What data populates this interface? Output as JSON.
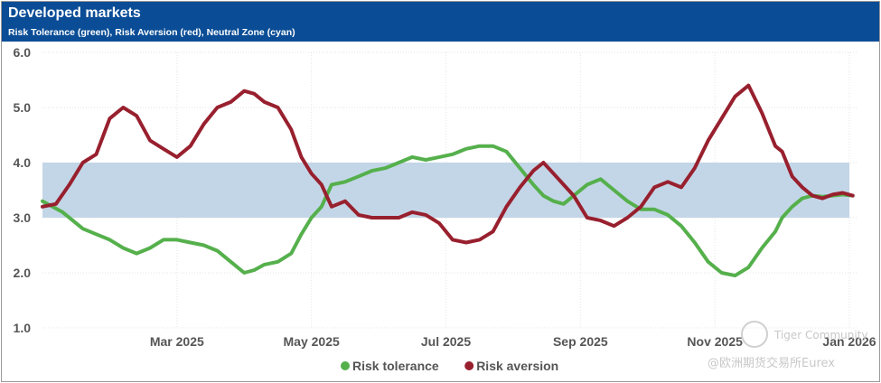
{
  "header": {
    "title": "Developed markets",
    "subtitle": "Risk Tolerance (green), Risk Aversion (red), Neutral Zone (cyan)"
  },
  "watermark": {
    "line1": "Tiger Community",
    "line2": "@欧洲期货交易所Eurex"
  },
  "chart_data": {
    "type": "line",
    "title": "Developed markets",
    "subtitle": "Risk Tolerance (green), Risk Aversion (red), Neutral Zone (cyan)",
    "xlabel": "",
    "ylabel": "",
    "ylim": [
      1.0,
      6.0
    ],
    "y_ticks": [
      "1.0",
      "2.0",
      "3.0",
      "4.0",
      "5.0",
      "6.0"
    ],
    "x_tick_labels": [
      "Mar 2025",
      "May 2025",
      "Jul 2025",
      "Sep 2025",
      "Nov 2025",
      "Jan 2026"
    ],
    "x_tick_months": [
      2,
      4,
      6,
      8,
      10,
      12
    ],
    "xlim_months": [
      0,
      12
    ],
    "grid": true,
    "legend_position": "bottom-center",
    "neutral_zone": {
      "lower": 3.0,
      "upper": 4.0,
      "color": "#c3d6e7"
    },
    "series": [
      {
        "name": "Risk tolerance",
        "color": "#55b04c",
        "x": [
          0.0,
          0.3,
          0.6,
          0.8,
          1.0,
          1.2,
          1.4,
          1.6,
          1.8,
          2.0,
          2.2,
          2.4,
          2.6,
          2.8,
          3.0,
          3.15,
          3.3,
          3.5,
          3.7,
          3.85,
          4.0,
          4.15,
          4.3,
          4.5,
          4.7,
          4.9,
          5.1,
          5.3,
          5.5,
          5.7,
          5.9,
          6.1,
          6.3,
          6.5,
          6.7,
          6.9,
          7.1,
          7.3,
          7.45,
          7.6,
          7.75,
          7.9,
          8.1,
          8.3,
          8.5,
          8.7,
          8.9,
          9.1,
          9.3,
          9.5,
          9.7,
          9.9,
          10.1,
          10.3,
          10.5,
          10.7,
          10.9,
          11.0,
          11.15,
          11.3,
          11.45,
          11.6,
          11.75,
          11.9,
          12.05
        ],
        "values": [
          3.3,
          3.1,
          2.8,
          2.7,
          2.6,
          2.45,
          2.35,
          2.45,
          2.6,
          2.6,
          2.55,
          2.5,
          2.4,
          2.2,
          2.0,
          2.05,
          2.15,
          2.2,
          2.35,
          2.7,
          3.0,
          3.2,
          3.6,
          3.65,
          3.75,
          3.85,
          3.9,
          4.0,
          4.1,
          4.05,
          4.1,
          4.15,
          4.25,
          4.3,
          4.3,
          4.2,
          3.9,
          3.6,
          3.4,
          3.3,
          3.25,
          3.4,
          3.6,
          3.7,
          3.5,
          3.3,
          3.15,
          3.15,
          3.05,
          2.85,
          2.55,
          2.2,
          2.0,
          1.95,
          2.1,
          2.45,
          2.75,
          3.0,
          3.2,
          3.35,
          3.4,
          3.38,
          3.4,
          3.42,
          3.4
        ]
      },
      {
        "name": "Risk aversion",
        "color": "#98202e",
        "x": [
          0.0,
          0.2,
          0.4,
          0.6,
          0.8,
          1.0,
          1.2,
          1.4,
          1.6,
          1.8,
          2.0,
          2.2,
          2.4,
          2.6,
          2.8,
          3.0,
          3.15,
          3.3,
          3.5,
          3.7,
          3.85,
          4.0,
          4.15,
          4.3,
          4.5,
          4.7,
          4.9,
          5.1,
          5.3,
          5.5,
          5.7,
          5.9,
          6.1,
          6.3,
          6.5,
          6.7,
          6.9,
          7.1,
          7.3,
          7.45,
          7.6,
          7.75,
          7.9,
          8.1,
          8.3,
          8.5,
          8.7,
          8.9,
          9.1,
          9.3,
          9.5,
          9.7,
          9.9,
          10.1,
          10.3,
          10.5,
          10.7,
          10.9,
          11.0,
          11.15,
          11.3,
          11.45,
          11.6,
          11.75,
          11.9,
          12.05
        ],
        "values": [
          3.2,
          3.25,
          3.6,
          4.0,
          4.15,
          4.8,
          5.0,
          4.85,
          4.4,
          4.25,
          4.1,
          4.3,
          4.7,
          5.0,
          5.1,
          5.3,
          5.25,
          5.1,
          5.0,
          4.6,
          4.1,
          3.8,
          3.6,
          3.2,
          3.3,
          3.05,
          3.0,
          3.0,
          3.0,
          3.1,
          3.05,
          2.9,
          2.6,
          2.55,
          2.6,
          2.75,
          3.2,
          3.55,
          3.85,
          4.0,
          3.8,
          3.6,
          3.4,
          3.0,
          2.95,
          2.85,
          3.0,
          3.2,
          3.55,
          3.65,
          3.55,
          3.9,
          4.4,
          4.8,
          5.2,
          5.4,
          4.9,
          4.3,
          4.2,
          3.75,
          3.55,
          3.4,
          3.35,
          3.42,
          3.45,
          3.4
        ]
      }
    ]
  }
}
